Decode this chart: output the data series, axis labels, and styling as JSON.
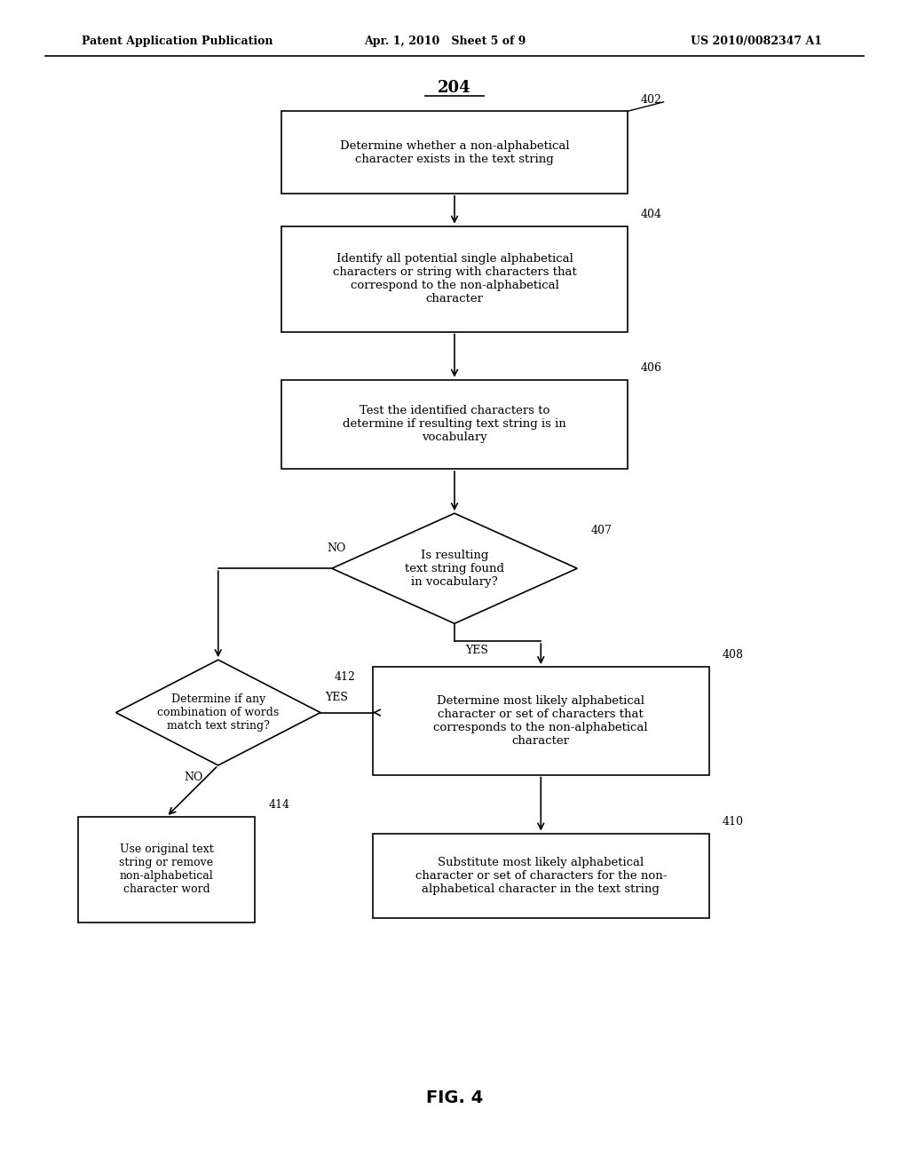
{
  "title": "204",
  "fig_label": "FIG. 4",
  "header_left": "Patent Application Publication",
  "header_mid": "Apr. 1, 2010   Sheet 5 of 9",
  "header_right": "US 2010/0082347 A1",
  "background_color": "#ffffff",
  "text_color": "#000000"
}
